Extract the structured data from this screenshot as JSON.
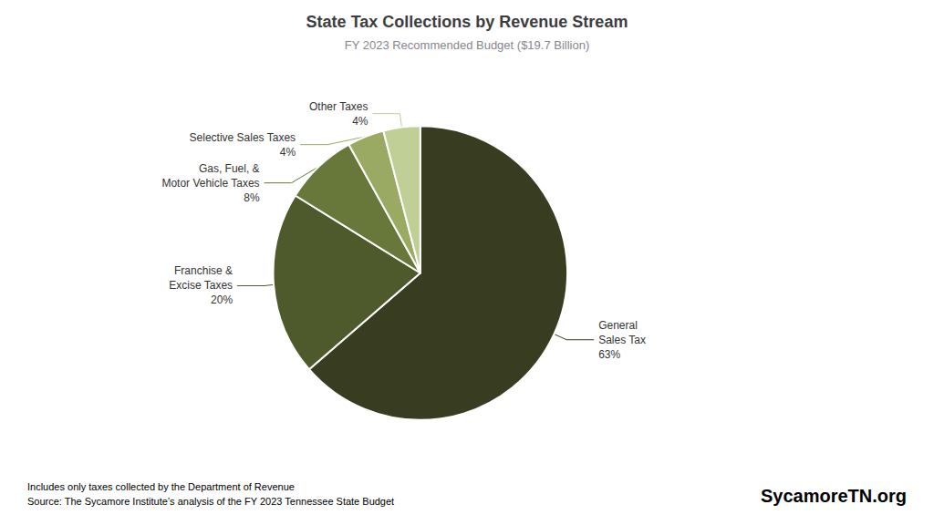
{
  "chart_data": {
    "type": "pie",
    "title": "State Tax Collections by Revenue Stream",
    "subtitle": "FY 2023 Recommended Budget ($19.7 Billion)",
    "categories": [
      "General\nSales Tax",
      "Franchise &\nExcise Taxes",
      "Gas, Fuel, &\nMotor Vehicle Taxes",
      "Selective Sales Taxes",
      "Other Taxes"
    ],
    "values": [
      63,
      20,
      8,
      4,
      4
    ],
    "value_labels": [
      "63%",
      "20%",
      "8%",
      "4%",
      "4%"
    ],
    "colors": [
      "#383d22",
      "#4e5a2c",
      "#68783a",
      "#9aaa62",
      "#c0cf96"
    ],
    "data_labels": true,
    "annotations": [
      "Includes only taxes collected by the Department of Revenue",
      "Source: The Sycamore Institute’s analysis of the FY 2023 Tennessee State Budget",
      "SycamoreTN.org"
    ]
  }
}
